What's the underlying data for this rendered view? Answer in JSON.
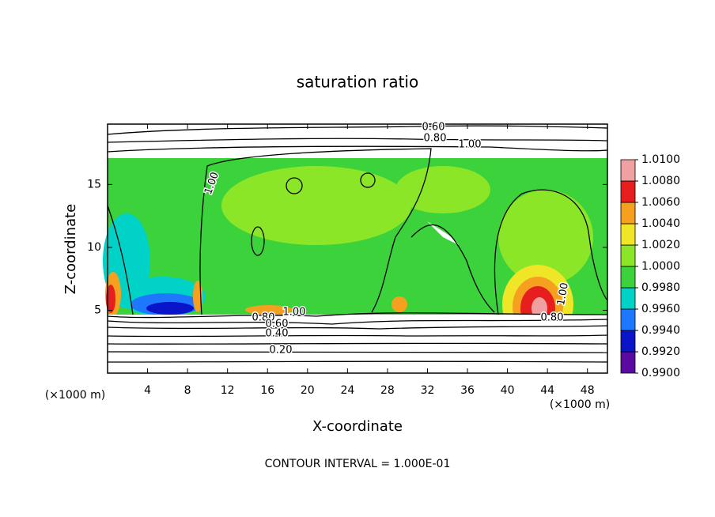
{
  "chart_data": {
    "type": "contour",
    "title": "saturation ratio",
    "xlabel": "X-coordinate",
    "ylabel": "Z-coordinate",
    "x_unit_left": "(×1000 m)",
    "x_unit_right": "(×1000 m)",
    "footnote": "CONTOUR INTERVAL = 1.000E-01",
    "xlim": [
      0,
      50
    ],
    "ylim": [
      0,
      19.8
    ],
    "xticks": [
      4,
      8,
      12,
      16,
      20,
      24,
      28,
      32,
      36,
      40,
      44,
      48
    ],
    "yticks": [
      5,
      10,
      15
    ],
    "contour_labels": [
      "0.60",
      "0.80",
      "1.00",
      "1.00",
      "1.00",
      "0.80",
      "0.60",
      "0.40",
      "0.20",
      "1.00",
      "0.80"
    ],
    "colorbar": {
      "levels": [
        {
          "value": 0.99,
          "label": "0.9900"
        },
        {
          "value": 0.992,
          "label": "0.9920"
        },
        {
          "value": 0.994,
          "label": "0.9940"
        },
        {
          "value": 0.996,
          "label": "0.9960"
        },
        {
          "value": 0.998,
          "label": "0.9980"
        },
        {
          "value": 1.0,
          "label": "1.0000"
        },
        {
          "value": 1.002,
          "label": "1.0020"
        },
        {
          "value": 1.004,
          "label": "1.0040"
        },
        {
          "value": 1.006,
          "label": "1.0060"
        },
        {
          "value": 1.008,
          "label": "1.0080"
        },
        {
          "value": 1.01,
          "label": "1.0100"
        }
      ],
      "colors": [
        "#5a0aa0",
        "#0a14c8",
        "#1e78ff",
        "#00d2c8",
        "#3cd23c",
        "#8ce628",
        "#f0e628",
        "#f5a01e",
        "#e61e1e",
        "#f0a0a0"
      ]
    }
  }
}
